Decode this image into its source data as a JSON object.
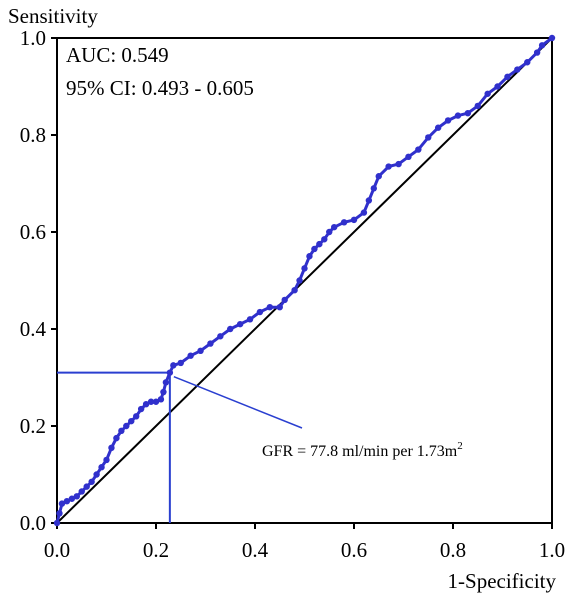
{
  "chart_data": {
    "type": "line",
    "title": "",
    "xlabel": "1-Specificity",
    "ylabel": "Sensitivity",
    "xlim": [
      0,
      1
    ],
    "ylim": [
      0,
      1
    ],
    "x_ticks": [
      "0.0",
      "0.2",
      "0.4",
      "0.6",
      "0.8",
      "1.0"
    ],
    "y_ticks": [
      "0.0",
      "0.2",
      "0.4",
      "0.6",
      "0.8",
      "1.0"
    ],
    "grid": false,
    "annotations": {
      "auc": "AUC: 0.549",
      "ci": "95% CI: 0.493 - 0.605",
      "cutoff_label": "GFR = 77.8 ml/min per 1.73m",
      "cutoff_superscript": "2"
    },
    "cutoff_point": {
      "x": 0.228,
      "y": 0.31
    },
    "colors": {
      "roc": "#3030cc",
      "reference": "#000000",
      "cutoff": "#2a3fd0"
    },
    "series": [
      {
        "points": [
          [
            0.0,
            0.0
          ],
          [
            0.005,
            0.02
          ],
          [
            0.01,
            0.04
          ],
          [
            0.02,
            0.045
          ],
          [
            0.03,
            0.05
          ],
          [
            0.04,
            0.055
          ],
          [
            0.05,
            0.065
          ],
          [
            0.06,
            0.075
          ],
          [
            0.07,
            0.085
          ],
          [
            0.08,
            0.1
          ],
          [
            0.09,
            0.115
          ],
          [
            0.1,
            0.13
          ],
          [
            0.11,
            0.155
          ],
          [
            0.12,
            0.175
          ],
          [
            0.13,
            0.19
          ],
          [
            0.14,
            0.2
          ],
          [
            0.15,
            0.21
          ],
          [
            0.16,
            0.22
          ],
          [
            0.17,
            0.235
          ],
          [
            0.18,
            0.245
          ],
          [
            0.19,
            0.25
          ],
          [
            0.2,
            0.25
          ],
          [
            0.21,
            0.255
          ],
          [
            0.215,
            0.27
          ],
          [
            0.22,
            0.29
          ],
          [
            0.228,
            0.31
          ],
          [
            0.235,
            0.325
          ],
          [
            0.25,
            0.33
          ],
          [
            0.27,
            0.345
          ],
          [
            0.29,
            0.355
          ],
          [
            0.31,
            0.37
          ],
          [
            0.33,
            0.385
          ],
          [
            0.35,
            0.4
          ],
          [
            0.37,
            0.41
          ],
          [
            0.39,
            0.42
          ],
          [
            0.41,
            0.435
          ],
          [
            0.43,
            0.445
          ],
          [
            0.45,
            0.445
          ],
          [
            0.46,
            0.46
          ],
          [
            0.48,
            0.48
          ],
          [
            0.49,
            0.5
          ],
          [
            0.5,
            0.525
          ],
          [
            0.51,
            0.55
          ],
          [
            0.52,
            0.565
          ],
          [
            0.53,
            0.575
          ],
          [
            0.54,
            0.585
          ],
          [
            0.55,
            0.6
          ],
          [
            0.56,
            0.61
          ],
          [
            0.58,
            0.62
          ],
          [
            0.6,
            0.625
          ],
          [
            0.62,
            0.64
          ],
          [
            0.63,
            0.665
          ],
          [
            0.64,
            0.69
          ],
          [
            0.65,
            0.715
          ],
          [
            0.67,
            0.735
          ],
          [
            0.69,
            0.74
          ],
          [
            0.71,
            0.755
          ],
          [
            0.73,
            0.77
          ],
          [
            0.75,
            0.795
          ],
          [
            0.77,
            0.815
          ],
          [
            0.79,
            0.83
          ],
          [
            0.81,
            0.84
          ],
          [
            0.83,
            0.845
          ],
          [
            0.85,
            0.86
          ],
          [
            0.87,
            0.885
          ],
          [
            0.89,
            0.9
          ],
          [
            0.91,
            0.92
          ],
          [
            0.93,
            0.935
          ],
          [
            0.95,
            0.95
          ],
          [
            0.97,
            0.97
          ],
          [
            0.98,
            0.985
          ],
          [
            1.0,
            1.0
          ]
        ]
      }
    ]
  }
}
